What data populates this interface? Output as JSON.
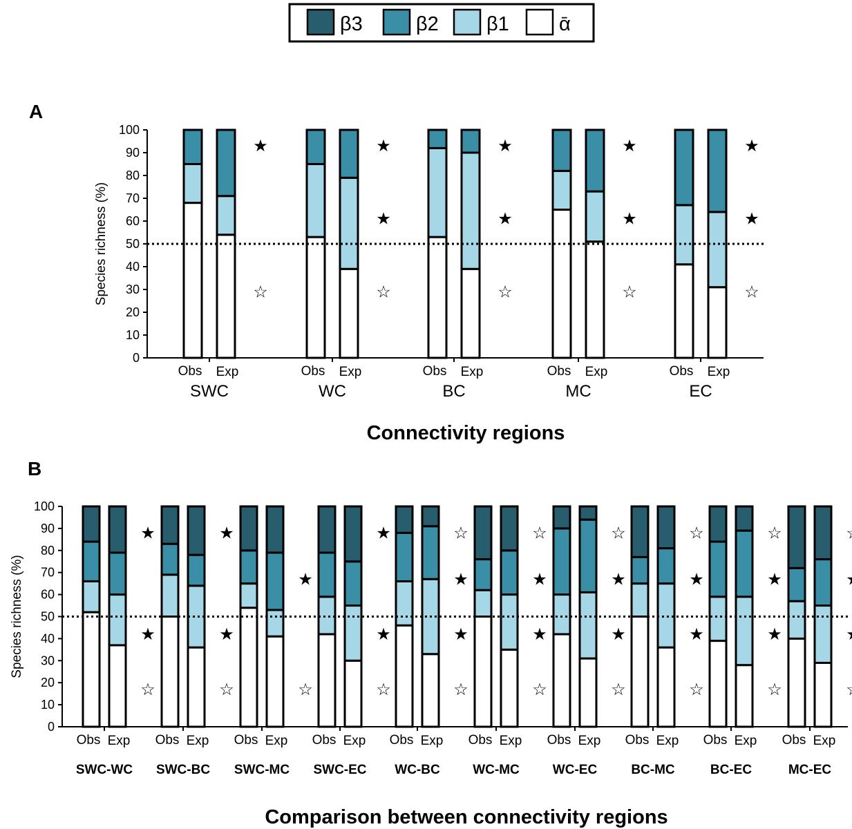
{
  "legend": {
    "items": [
      {
        "label": "β3",
        "color": "#285d6e"
      },
      {
        "label": "β2",
        "color": "#3a8ea6"
      },
      {
        "label": "β1",
        "color": "#a6d7e6"
      },
      {
        "label": "ᾱ",
        "color": "#ffffff"
      }
    ]
  },
  "chart_data": [
    {
      "type": "bar",
      "panel_label": "A",
      "stacked": true,
      "ylabel": "Species richness (%)",
      "xlabel": "Connectivity regions",
      "ylim": [
        0,
        100
      ],
      "yticks": [
        0,
        10,
        20,
        30,
        40,
        50,
        60,
        70,
        80,
        90,
        100
      ],
      "reference_line": 50,
      "bar_labels": [
        "Obs",
        "Exp"
      ],
      "groups": [
        "SWC",
        "WC",
        "BC",
        "MC",
        "EC"
      ],
      "bars": [
        [
          {
            "alpha": 68,
            "b1": 85,
            "b2": 100,
            "b3": 100
          },
          {
            "alpha": 54,
            "b1": 71,
            "b2": 100,
            "b3": 100
          }
        ],
        [
          {
            "alpha": 53,
            "b1": 85,
            "b2": 100,
            "b3": 100
          },
          {
            "alpha": 39,
            "b1": 79,
            "b2": 100,
            "b3": 100
          }
        ],
        [
          {
            "alpha": 53,
            "b1": 92,
            "b2": 100,
            "b3": 100
          },
          {
            "alpha": 39,
            "b1": 90,
            "b2": 100,
            "b3": 100
          }
        ],
        [
          {
            "alpha": 65,
            "b1": 82,
            "b2": 100,
            "b3": 100
          },
          {
            "alpha": 51,
            "b1": 73,
            "b2": 100,
            "b3": 100
          }
        ],
        [
          {
            "alpha": 41,
            "b1": 67,
            "b2": 100,
            "b3": 100
          },
          {
            "alpha": 31,
            "b1": 64,
            "b2": 100,
            "b3": 100
          }
        ]
      ],
      "significance": [
        {
          "b2": "filled",
          "b1": "",
          "alpha": "open"
        },
        {
          "b2": "filled",
          "b1": "filled",
          "alpha": "open"
        },
        {
          "b2": "filled",
          "b1": "filled",
          "alpha": "open"
        },
        {
          "b2": "filled",
          "b1": "filled",
          "alpha": "open"
        },
        {
          "b2": "filled",
          "b1": "filled",
          "alpha": "open"
        }
      ]
    },
    {
      "type": "bar",
      "panel_label": "B",
      "stacked": true,
      "ylabel": "Species richness (%)",
      "xlabel": "Comparison between connectivity regions",
      "ylim": [
        0,
        100
      ],
      "yticks": [
        0,
        10,
        20,
        30,
        40,
        50,
        60,
        70,
        80,
        90,
        100
      ],
      "reference_line": 50,
      "bar_labels": [
        "Obs",
        "Exp"
      ],
      "groups": [
        "SWC-WC",
        "SWC-BC",
        "SWC-MC",
        "SWC-EC",
        "WC-BC",
        "WC-MC",
        "WC-EC",
        "BC-MC",
        "BC-EC",
        "MC-EC"
      ],
      "bars": [
        [
          {
            "alpha": 52,
            "b1": 66,
            "b2": 84,
            "b3": 100
          },
          {
            "alpha": 37,
            "b1": 60,
            "b2": 79,
            "b3": 100
          }
        ],
        [
          {
            "alpha": 50,
            "b1": 69,
            "b2": 83,
            "b3": 100
          },
          {
            "alpha": 36,
            "b1": 64,
            "b2": 78,
            "b3": 100
          }
        ],
        [
          {
            "alpha": 54,
            "b1": 65,
            "b2": 80,
            "b3": 100
          },
          {
            "alpha": 41,
            "b1": 53,
            "b2": 79,
            "b3": 100
          }
        ],
        [
          {
            "alpha": 42,
            "b1": 59,
            "b2": 79,
            "b3": 100
          },
          {
            "alpha": 30,
            "b1": 55,
            "b2": 75,
            "b3": 100
          }
        ],
        [
          {
            "alpha": 46,
            "b1": 66,
            "b2": 88,
            "b3": 100
          },
          {
            "alpha": 33,
            "b1": 67,
            "b2": 91,
            "b3": 100
          }
        ],
        [
          {
            "alpha": 50,
            "b1": 62,
            "b2": 76,
            "b3": 100
          },
          {
            "alpha": 35,
            "b1": 60,
            "b2": 80,
            "b3": 100
          }
        ],
        [
          {
            "alpha": 42,
            "b1": 60,
            "b2": 90,
            "b3": 100
          },
          {
            "alpha": 31,
            "b1": 61,
            "b2": 94,
            "b3": 100
          }
        ],
        [
          {
            "alpha": 50,
            "b1": 65,
            "b2": 77,
            "b3": 100
          },
          {
            "alpha": 36,
            "b1": 65,
            "b2": 81,
            "b3": 100
          }
        ],
        [
          {
            "alpha": 39,
            "b1": 59,
            "b2": 84,
            "b3": 100
          },
          {
            "alpha": 28,
            "b1": 59,
            "b2": 89,
            "b3": 100
          }
        ],
        [
          {
            "alpha": 40,
            "b1": 57,
            "b2": 72,
            "b3": 100
          },
          {
            "alpha": 29,
            "b1": 55,
            "b2": 76,
            "b3": 100
          }
        ]
      ],
      "significance": [
        {
          "b3": "filled",
          "b2": "",
          "b1": "filled",
          "alpha": "open"
        },
        {
          "b3": "filled",
          "b2": "",
          "b1": "filled",
          "alpha": "open"
        },
        {
          "b3": "",
          "b2": "filled",
          "b1": "",
          "alpha": "open"
        },
        {
          "b3": "filled",
          "b2": "",
          "b1": "filled",
          "alpha": "open"
        },
        {
          "b3": "open",
          "b2": "filled",
          "b1": "filled",
          "alpha": "open"
        },
        {
          "b3": "open",
          "b2": "filled",
          "b1": "filled",
          "alpha": "open"
        },
        {
          "b3": "open",
          "b2": "filled",
          "b1": "filled",
          "alpha": "open"
        },
        {
          "b3": "open",
          "b2": "filled",
          "b1": "filled",
          "alpha": "open"
        },
        {
          "b3": "open",
          "b2": "filled",
          "b1": "filled",
          "alpha": "open"
        },
        {
          "b3": "open",
          "b2": "filled",
          "b1": "filled",
          "alpha": "open"
        }
      ]
    }
  ]
}
